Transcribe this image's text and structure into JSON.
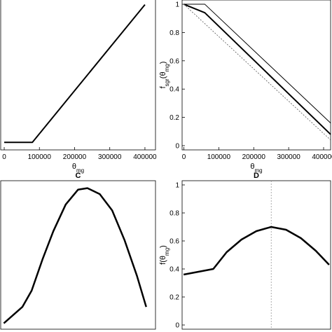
{
  "chart_data": [
    {
      "type": "line",
      "xlabel": [
        {
          "text": "θ"
        },
        {
          "text": "mg",
          "sub": true
        }
      ],
      "xlim": [
        -10000,
        430000
      ],
      "xticks": [
        0,
        100000,
        200000,
        300000,
        400000
      ],
      "ylim": [
        0,
        1
      ],
      "series": [
        {
          "color": "#000000",
          "width": 2,
          "x": [
            0,
            80000,
            400000
          ],
          "values": [
            0.05,
            0.05,
            0.96
          ]
        }
      ]
    },
    {
      "type": "line",
      "xlabel": [
        {
          "text": "θ"
        },
        {
          "text": "mg",
          "sub": true
        }
      ],
      "ylabel": [
        {
          "text": "f"
        },
        {
          "text": "sgr",
          "sub": true
        },
        {
          "text": "(θ"
        },
        {
          "text": "mg",
          "sub": true
        },
        {
          "text": ")"
        }
      ],
      "xlim": [
        -5000,
        420000
      ],
      "xticks": [
        0,
        100000,
        200000,
        300000,
        400000
      ],
      "ylim": [
        -0.03,
        1.03
      ],
      "yticks": [
        0,
        0.2,
        0.4,
        0.6,
        0.8,
        1
      ],
      "series": [
        {
          "color": "#000000",
          "width": 1,
          "x": [
            0,
            60000,
            420000
          ],
          "values": [
            1,
            1,
            0.16
          ]
        },
        {
          "color": "#000000",
          "width": 2,
          "x": [
            0,
            60000,
            420000
          ],
          "values": [
            1,
            0.94,
            0.08
          ]
        },
        {
          "color": "#555555",
          "width": 0.8,
          "dash": "2 2",
          "x": [
            0,
            420000
          ],
          "values": [
            1,
            0.04
          ]
        }
      ]
    },
    {
      "type": "line",
      "title": "C",
      "xlim": [
        0,
        1
      ],
      "ylim": [
        0,
        1
      ],
      "series": [
        {
          "color": "#000000",
          "width": 2.5,
          "x": [
            0.02,
            0.14,
            0.2,
            0.27,
            0.34,
            0.42,
            0.5,
            0.56,
            0.64,
            0.72,
            0.8,
            0.88,
            0.94
          ],
          "values": [
            0.04,
            0.15,
            0.26,
            0.47,
            0.66,
            0.84,
            0.94,
            0.95,
            0.91,
            0.8,
            0.6,
            0.36,
            0.15
          ]
        }
      ]
    },
    {
      "type": "line",
      "title": "D",
      "ylabel": [
        {
          "text": "f(θ"
        },
        {
          "text": "mg",
          "sub": true
        },
        {
          "text": ")"
        }
      ],
      "xlim": [
        0,
        1
      ],
      "ylim": [
        -0.03,
        1.03
      ],
      "yticks": [
        0,
        0.2,
        0.4,
        0.6,
        0.8,
        1
      ],
      "vline": 0.6,
      "series": [
        {
          "color": "#000000",
          "width": 2.5,
          "x": [
            0.01,
            0.21,
            0.3,
            0.4,
            0.5,
            0.6,
            0.7,
            0.8,
            0.9,
            0.99
          ],
          "values": [
            0.36,
            0.4,
            0.52,
            0.61,
            0.67,
            0.7,
            0.68,
            0.62,
            0.53,
            0.43
          ]
        }
      ]
    }
  ]
}
